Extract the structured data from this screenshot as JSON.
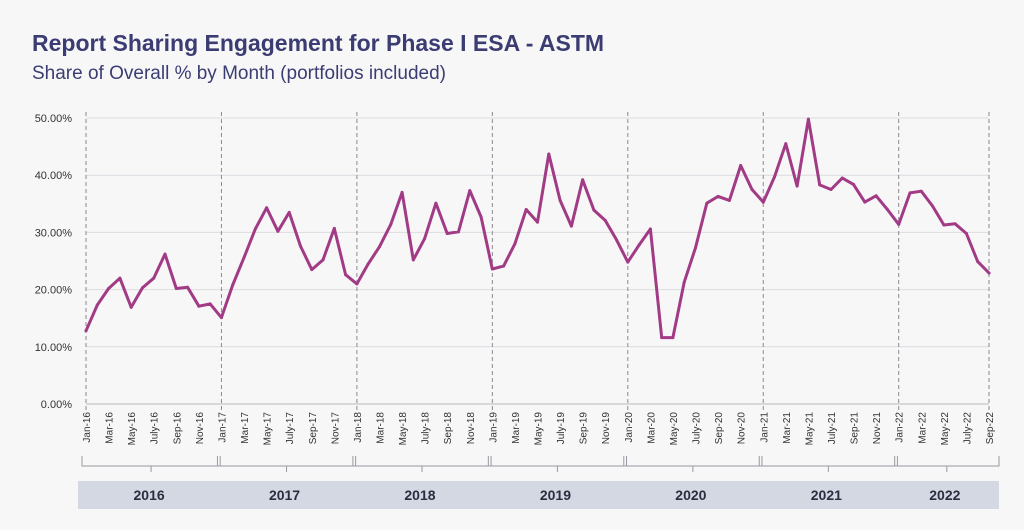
{
  "chart_data": {
    "type": "line",
    "title": "Report Sharing Engagement for Phase I ESA - ASTM",
    "subtitle": "Share of Overall % by Month (portfolios included)",
    "xlabel": "",
    "ylabel": "",
    "ylim": [
      0,
      50
    ],
    "yticks": [
      "0.00%",
      "10.00%",
      "20.00%",
      "30.00%",
      "40.00%",
      "50.00%"
    ],
    "grid": true,
    "line_color": "#a23b85",
    "x": [
      "Jan-16",
      "Feb-16",
      "Mar-16",
      "Apr-16",
      "May-16",
      "Jun-16",
      "July-16",
      "Aug-16",
      "Sep-16",
      "Oct-16",
      "Nov-16",
      "Dec-16",
      "Jan-17",
      "Feb-17",
      "Mar-17",
      "Apr-17",
      "May-17",
      "Jun-17",
      "July-17",
      "Aug-17",
      "Sep-17",
      "Oct-17",
      "Nov-17",
      "Dec-17",
      "Jan-18",
      "Feb-18",
      "Mar-18",
      "Apr-18",
      "May-18",
      "Jun-18",
      "July-18",
      "Aug-18",
      "Sep-18",
      "Oct-18",
      "Nov-18",
      "Dec-18",
      "Jan-19",
      "Feb-19",
      "Mar-19",
      "Apr-19",
      "May-19",
      "Jun-19",
      "July-19",
      "Aug-19",
      "Sep-19",
      "Oct-19",
      "Nov-19",
      "Dec-19",
      "Jan-20",
      "Feb-20",
      "Mar-20",
      "Apr-20",
      "May-20",
      "Jun-20",
      "July-20",
      "Aug-20",
      "Sep-20",
      "Oct-20",
      "Nov-20",
      "Dec-20",
      "Jan-21",
      "Feb-21",
      "Mar-21",
      "Apr-21",
      "May-21",
      "Jun-21",
      "July-21",
      "Aug-21",
      "Sep-21",
      "Oct-21",
      "Nov-21",
      "Dec-21",
      "Jan-22",
      "Feb-22",
      "Mar-22",
      "Apr-22",
      "May-22",
      "Jun-22",
      "July-22",
      "Aug-22",
      "Sep-22"
    ],
    "tick_labels": [
      "Jan-16",
      "Mar-16",
      "May-16",
      "July-16",
      "Sep-16",
      "Nov-16",
      "Jan-17",
      "Mar-17",
      "May-17",
      "July-17",
      "Sep-17",
      "Nov-17",
      "Jan-18",
      "Mar-18",
      "May-18",
      "July-18",
      "Sep-18",
      "Nov-18",
      "Jan-19",
      "Mar-19",
      "May-19",
      "July-19",
      "Sep-19",
      "Nov-19",
      "Jan-20",
      "Mar-20",
      "May-20",
      "July-20",
      "Sep-20",
      "Nov-20",
      "Jan-21",
      "Mar-21",
      "May-21",
      "July-21",
      "Sep-21",
      "Nov-21",
      "Jan-22",
      "Mar-22",
      "May-22",
      "July-22",
      "Sep-22"
    ],
    "series": [
      {
        "values": [
          12.8,
          17.3,
          20.2,
          22.0,
          16.9,
          20.3,
          22.0,
          26.2,
          20.2,
          20.4,
          17.1,
          17.5,
          15.1,
          20.8,
          25.6,
          30.6,
          34.3,
          30.2,
          33.5,
          27.6,
          23.5,
          25.2,
          30.7,
          22.6,
          21.0,
          24.5,
          27.5,
          31.4,
          37.0,
          25.2,
          28.9,
          35.1,
          29.8,
          30.1,
          37.3,
          32.7,
          23.6,
          24.1,
          28.0,
          34.0,
          31.8,
          43.7,
          35.6,
          31.1,
          39.2,
          33.9,
          32.1,
          28.7,
          24.8,
          27.8,
          30.6,
          11.6,
          11.6,
          21.3,
          27.3,
          35.1,
          36.3,
          35.6,
          41.7,
          37.5,
          35.3,
          39.7,
          45.5,
          38.1,
          49.8,
          38.3,
          37.5,
          39.5,
          38.4,
          35.3,
          36.4,
          34.0,
          31.4,
          36.9,
          37.2,
          34.6,
          31.3,
          31.5,
          29.8,
          24.9,
          22.9
        ]
      }
    ],
    "years": [
      "2016",
      "2017",
      "2018",
      "2019",
      "2020",
      "2021",
      "2022"
    ]
  }
}
